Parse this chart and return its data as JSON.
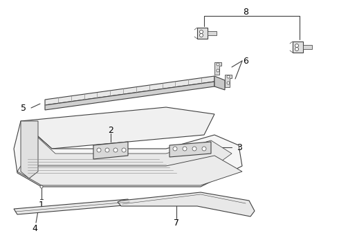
{
  "bg_color": "#ffffff",
  "line_color": "#404040",
  "text_color": "#000000",
  "fs": 8.5,
  "lw": 0.8
}
